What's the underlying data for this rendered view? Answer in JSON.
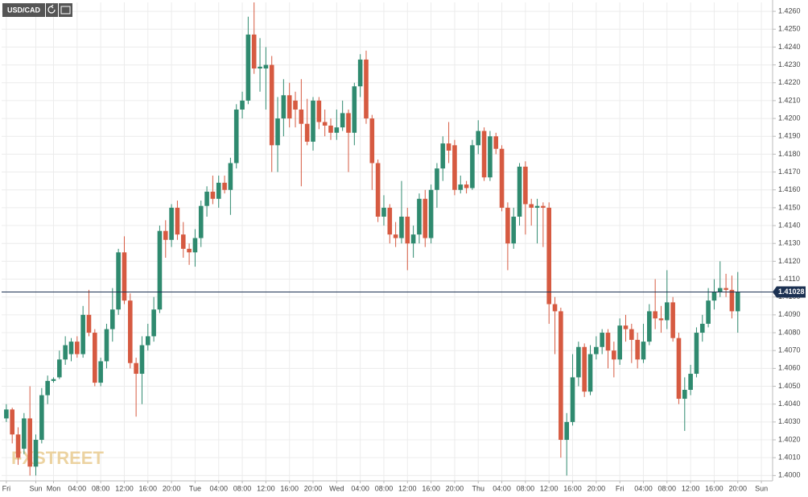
{
  "chart_data": {
    "type": "candlestick",
    "title": "USD/CAD",
    "watermark": "FXSTREET",
    "last_price": 1.41028,
    "up_color": "#2f8a6f",
    "down_color": "#d65a41",
    "grid": true,
    "ylim": [
      1.3997,
      1.4265
    ],
    "xlim": [
      -0.8,
      129.9
    ],
    "yticks": [
      {
        "value": 1.4,
        "label": "1.4000"
      },
      {
        "value": 1.401,
        "label": "1.4010"
      },
      {
        "value": 1.402,
        "label": "1.4020"
      },
      {
        "value": 1.403,
        "label": "1.4030"
      },
      {
        "value": 1.404,
        "label": "1.4040"
      },
      {
        "value": 1.405,
        "label": "1.4050"
      },
      {
        "value": 1.406,
        "label": "1.4060"
      },
      {
        "value": 1.407,
        "label": "1.4070"
      },
      {
        "value": 1.408,
        "label": "1.4080"
      },
      {
        "value": 1.409,
        "label": "1.4090"
      },
      {
        "value": 1.41,
        "label": "1.4100"
      },
      {
        "value": 1.411,
        "label": "1.4110"
      },
      {
        "value": 1.412,
        "label": "1.4120"
      },
      {
        "value": 1.413,
        "label": "1.4130"
      },
      {
        "value": 1.414,
        "label": "1.4140"
      },
      {
        "value": 1.415,
        "label": "1.4150"
      },
      {
        "value": 1.416,
        "label": "1.4160"
      },
      {
        "value": 1.417,
        "label": "1.4170"
      },
      {
        "value": 1.418,
        "label": "1.4180"
      },
      {
        "value": 1.419,
        "label": "1.4190"
      },
      {
        "value": 1.42,
        "label": "1.4200"
      },
      {
        "value": 1.421,
        "label": "1.4210"
      },
      {
        "value": 1.422,
        "label": "1.4220"
      },
      {
        "value": 1.423,
        "label": "1.4230"
      },
      {
        "value": 1.424,
        "label": "1.4240"
      },
      {
        "value": 1.425,
        "label": "1.4250"
      },
      {
        "value": 1.426,
        "label": "1.4260"
      }
    ],
    "xticks": [
      {
        "value": 0,
        "label": "Fri"
      },
      {
        "value": 5,
        "label": "Sun"
      },
      {
        "value": 8,
        "label": "Mon"
      },
      {
        "value": 12,
        "label": "04:00"
      },
      {
        "value": 16,
        "label": "08:00"
      },
      {
        "value": 20,
        "label": "12:00"
      },
      {
        "value": 24,
        "label": "16:00"
      },
      {
        "value": 28,
        "label": "20:00"
      },
      {
        "value": 32,
        "label": "Tue"
      },
      {
        "value": 36,
        "label": "04:00"
      },
      {
        "value": 40,
        "label": "08:00"
      },
      {
        "value": 44,
        "label": "12:00"
      },
      {
        "value": 48,
        "label": "16:00"
      },
      {
        "value": 52,
        "label": "20:00"
      },
      {
        "value": 56,
        "label": "Wed"
      },
      {
        "value": 60,
        "label": "04:00"
      },
      {
        "value": 64,
        "label": "08:00"
      },
      {
        "value": 68,
        "label": "12:00"
      },
      {
        "value": 72,
        "label": "16:00"
      },
      {
        "value": 76,
        "label": "20:00"
      },
      {
        "value": 80,
        "label": "Thu"
      },
      {
        "value": 84,
        "label": "04:00"
      },
      {
        "value": 88,
        "label": "08:00"
      },
      {
        "value": 92,
        "label": "12:00"
      },
      {
        "value": 96,
        "label": "16:00"
      },
      {
        "value": 100,
        "label": "20:00"
      },
      {
        "value": 104,
        "label": "Fri"
      },
      {
        "value": 108,
        "label": "04:00"
      },
      {
        "value": 112,
        "label": "08:00"
      },
      {
        "value": 116,
        "label": "12:00"
      },
      {
        "value": 120,
        "label": "16:00"
      },
      {
        "value": 124,
        "label": "20:00"
      },
      {
        "value": 128,
        "label": "Sun"
      }
    ],
    "open": [
      1.4032,
      1.4037,
      1.4023,
      1.4015,
      1.4032,
      1.4005,
      1.402,
      1.4045,
      1.4053,
      1.4055,
      1.4065,
      1.4068,
      1.4075,
      1.4068,
      1.409,
      1.408,
      1.4052,
      1.4064,
      1.4082,
      1.4093,
      1.4125,
      1.4098,
      1.4063,
      1.4057,
      1.4073,
      1.4078,
      1.4093,
      1.4137,
      1.4132,
      1.415,
      1.4135,
      1.4127,
      1.4125,
      1.4133,
      1.4151,
      1.4159,
      1.4155,
      1.4164,
      1.416,
      1.4175,
      1.4205,
      1.421,
      1.4247,
      1.4228,
      1.4228,
      1.423,
      1.4185,
      1.42,
      1.4213,
      1.421,
      1.4205,
      1.4197,
      1.4187,
      1.421,
      1.4198,
      1.4196,
      1.4192,
      1.4195,
      1.4203,
      1.4192,
      1.4218,
      1.4233,
      1.42,
      1.4175,
      1.4145,
      1.415,
      1.4135,
      1.4133,
      1.4145,
      1.413,
      1.4135,
      1.4155,
      1.4133,
      1.416,
      1.4172,
      1.4186,
      1.4185,
      1.416,
      1.4163,
      1.4161,
      1.4185,
      1.4193,
      1.4167,
      1.419,
      1.4183,
      1.415,
      1.413,
      1.4145,
      1.4173,
      1.4152,
      1.415,
      1.4151,
      1.415,
      1.4096,
      1.4092,
      1.402,
      1.403,
      1.4055,
      1.4072,
      1.4047,
      1.4068,
      1.4072,
      1.408,
      1.407,
      1.4065,
      1.4084,
      1.4082,
      1.4076,
      1.4065,
      1.4075,
      1.4092,
      1.4088,
      1.4087,
      1.4097,
      1.4077,
      1.4043,
      1.4048,
      1.4057,
      1.408,
      1.4085,
      1.4098,
      1.4103,
      1.4105,
      1.4104,
      1.4092
    ],
    "high": [
      1.404,
      1.4038,
      1.4027,
      1.4035,
      1.405,
      1.4023,
      1.4049,
      1.4056,
      1.4055,
      1.407,
      1.4078,
      1.4077,
      1.4078,
      1.4095,
      1.4104,
      1.4082,
      1.4066,
      1.4085,
      1.4105,
      1.4127,
      1.4134,
      1.4102,
      1.4066,
      1.4078,
      1.4085,
      1.41,
      1.414,
      1.4143,
      1.4152,
      1.4154,
      1.4142,
      1.413,
      1.4138,
      1.4154,
      1.4162,
      1.4168,
      1.4168,
      1.4168,
      1.4178,
      1.4208,
      1.4215,
      1.4257,
      1.4265,
      1.4245,
      1.424,
      1.4235,
      1.4212,
      1.4222,
      1.422,
      1.4215,
      1.4222,
      1.4211,
      1.4212,
      1.4212,
      1.4205,
      1.42,
      1.4205,
      1.421,
      1.4205,
      1.422,
      1.4236,
      1.4238,
      1.4202,
      1.4177,
      1.4157,
      1.4152,
      1.4142,
      1.4165,
      1.415,
      1.414,
      1.4158,
      1.416,
      1.4163,
      1.4175,
      1.419,
      1.4198,
      1.4188,
      1.4168,
      1.4165,
      1.4188,
      1.4199,
      1.4195,
      1.4193,
      1.4192,
      1.4185,
      1.4153,
      1.415,
      1.4175,
      1.4176,
      1.4155,
      1.4155,
      1.4153,
      1.4153,
      1.41,
      1.4094,
      1.4035,
      1.4068,
      1.4075,
      1.4074,
      1.4073,
      1.4078,
      1.4082,
      1.4082,
      1.4075,
      1.4088,
      1.409,
      1.4085,
      1.408,
      1.4085,
      1.4096,
      1.411,
      1.4095,
      1.4115,
      1.41,
      1.408,
      1.4055,
      1.4062,
      1.4083,
      1.409,
      1.4105,
      1.411,
      1.412,
      1.4113,
      1.4112,
      1.4114
    ],
    "low": [
      1.403,
      1.4018,
      1.4006,
      1.4012,
      1.4,
      1.4,
      1.4018,
      1.404,
      1.4052,
      1.4054,
      1.4062,
      1.4064,
      1.4066,
      1.4066,
      1.4078,
      1.405,
      1.405,
      1.406,
      1.4075,
      1.409,
      1.4096,
      1.406,
      1.4033,
      1.404,
      1.407,
      1.4075,
      1.4091,
      1.4122,
      1.4128,
      1.4132,
      1.4122,
      1.4118,
      1.4117,
      1.4128,
      1.4145,
      1.4152,
      1.415,
      1.4158,
      1.4146,
      1.4172,
      1.42,
      1.4208,
      1.4225,
      1.4215,
      1.4205,
      1.417,
      1.417,
      1.419,
      1.4195,
      1.4195,
      1.4162,
      1.4185,
      1.4182,
      1.4194,
      1.419,
      1.4188,
      1.4188,
      1.4193,
      1.417,
      1.4185,
      1.4212,
      1.4197,
      1.416,
      1.4142,
      1.414,
      1.413,
      1.4128,
      1.413,
      1.4115,
      1.4122,
      1.413,
      1.4128,
      1.413,
      1.415,
      1.4165,
      1.4175,
      1.4157,
      1.4158,
      1.4158,
      1.416,
      1.418,
      1.4165,
      1.4165,
      1.418,
      1.4148,
      1.4115,
      1.4127,
      1.414,
      1.4135,
      1.414,
      1.413,
      1.4128,
      1.4085,
      1.4068,
      1.401,
      1.4,
      1.4028,
      1.405,
      1.4044,
      1.4045,
      1.4065,
      1.4068,
      1.406,
      1.4055,
      1.4062,
      1.4075,
      1.4063,
      1.406,
      1.4063,
      1.4073,
      1.4082,
      1.408,
      1.4082,
      1.4075,
      1.404,
      1.4025,
      1.4045,
      1.4055,
      1.4075,
      1.4083,
      1.4093,
      1.41,
      1.41,
      1.4088,
      1.408
    ],
    "close": [
      1.4037,
      1.4023,
      1.401,
      1.4032,
      1.4005,
      1.402,
      1.4045,
      1.4053,
      1.4054,
      1.4065,
      1.4073,
      1.4075,
      1.4068,
      1.409,
      1.408,
      1.4052,
      1.4064,
      1.4082,
      1.4093,
      1.4125,
      1.4098,
      1.4063,
      1.4057,
      1.4073,
      1.4078,
      1.4093,
      1.4137,
      1.4132,
      1.415,
      1.4135,
      1.4127,
      1.4125,
      1.4133,
      1.4151,
      1.4159,
      1.4155,
      1.4164,
      1.416,
      1.4175,
      1.4205,
      1.421,
      1.4247,
      1.4228,
      1.4229,
      1.423,
      1.4185,
      1.42,
      1.4213,
      1.42,
      1.4205,
      1.4197,
      1.4187,
      1.421,
      1.4198,
      1.4196,
      1.4192,
      1.4195,
      1.4203,
      1.4192,
      1.4218,
      1.4233,
      1.42,
      1.4175,
      1.4145,
      1.415,
      1.4135,
      1.4133,
      1.4145,
      1.413,
      1.4135,
      1.4155,
      1.4133,
      1.416,
      1.4172,
      1.4186,
      1.4182,
      1.416,
      1.4163,
      1.4161,
      1.4185,
      1.4193,
      1.4167,
      1.419,
      1.4183,
      1.415,
      1.413,
      1.4145,
      1.4173,
      1.4152,
      1.415,
      1.4151,
      1.415,
      1.4096,
      1.4092,
      1.402,
      1.403,
      1.4055,
      1.4072,
      1.4047,
      1.4068,
      1.4072,
      1.408,
      1.407,
      1.4065,
      1.4084,
      1.4082,
      1.4076,
      1.4065,
      1.4075,
      1.4092,
      1.4088,
      1.4087,
      1.4097,
      1.4077,
      1.4043,
      1.4048,
      1.4057,
      1.408,
      1.4085,
      1.4098,
      1.4103,
      1.4105,
      1.4104,
      1.4092,
      1.41028
    ]
  }
}
